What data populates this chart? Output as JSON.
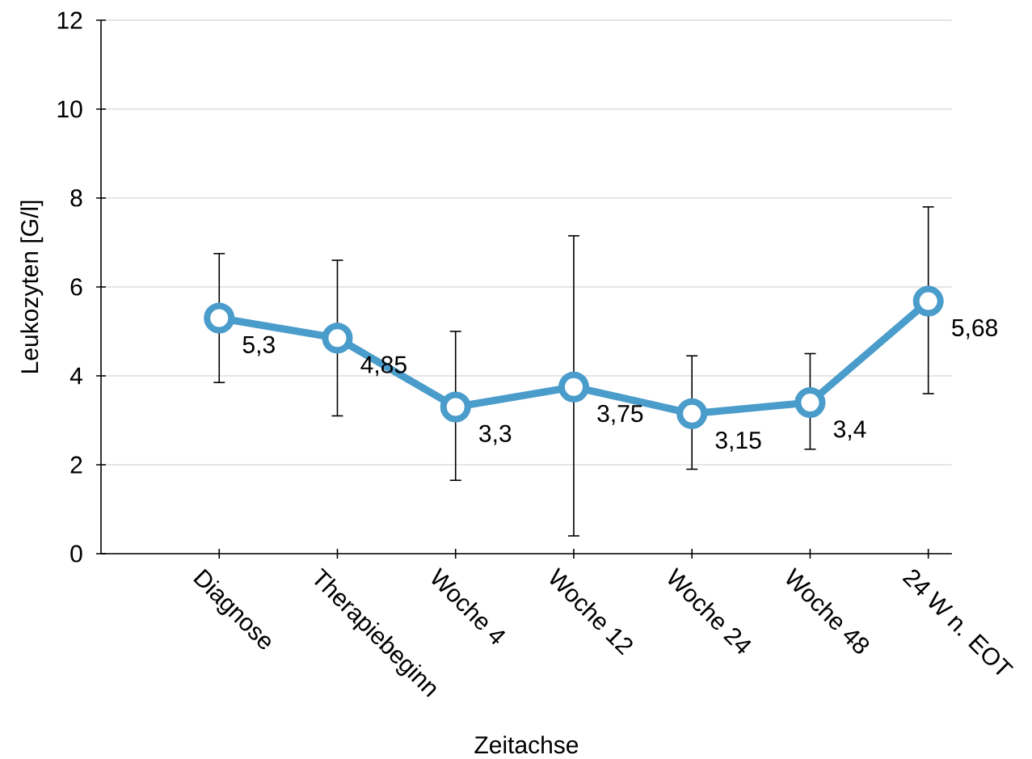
{
  "chart_data": {
    "type": "line",
    "xlabel": "Zeitachse",
    "ylabel": "Leukozyten [G/l]",
    "categories": [
      "Diagnose",
      "Therapiebeginn",
      "Woche 4",
      "Woche 12",
      "Woche 24",
      "Woche 48",
      "24 W n. EOT"
    ],
    "series": [
      {
        "color": "#4a9ccb",
        "values": [
          5.3,
          4.85,
          3.3,
          3.75,
          3.15,
          3.4,
          5.68
        ],
        "value_labels": [
          "5,3",
          "4,85",
          "3,3",
          "3,75",
          "3,15",
          "3,4",
          "5,68"
        ],
        "errors": [
          [
            3.85,
            6.75
          ],
          [
            3.1,
            6.6
          ],
          [
            1.65,
            5.0
          ],
          [
            0.4,
            7.15
          ],
          [
            1.9,
            4.45
          ],
          [
            2.35,
            4.5
          ],
          [
            3.6,
            7.8
          ]
        ]
      }
    ],
    "ylim": [
      0,
      12
    ],
    "yticks": [
      0,
      2,
      4,
      6,
      8,
      10,
      12
    ],
    "grid": "y",
    "marker": "circle",
    "line_style": "solid"
  }
}
